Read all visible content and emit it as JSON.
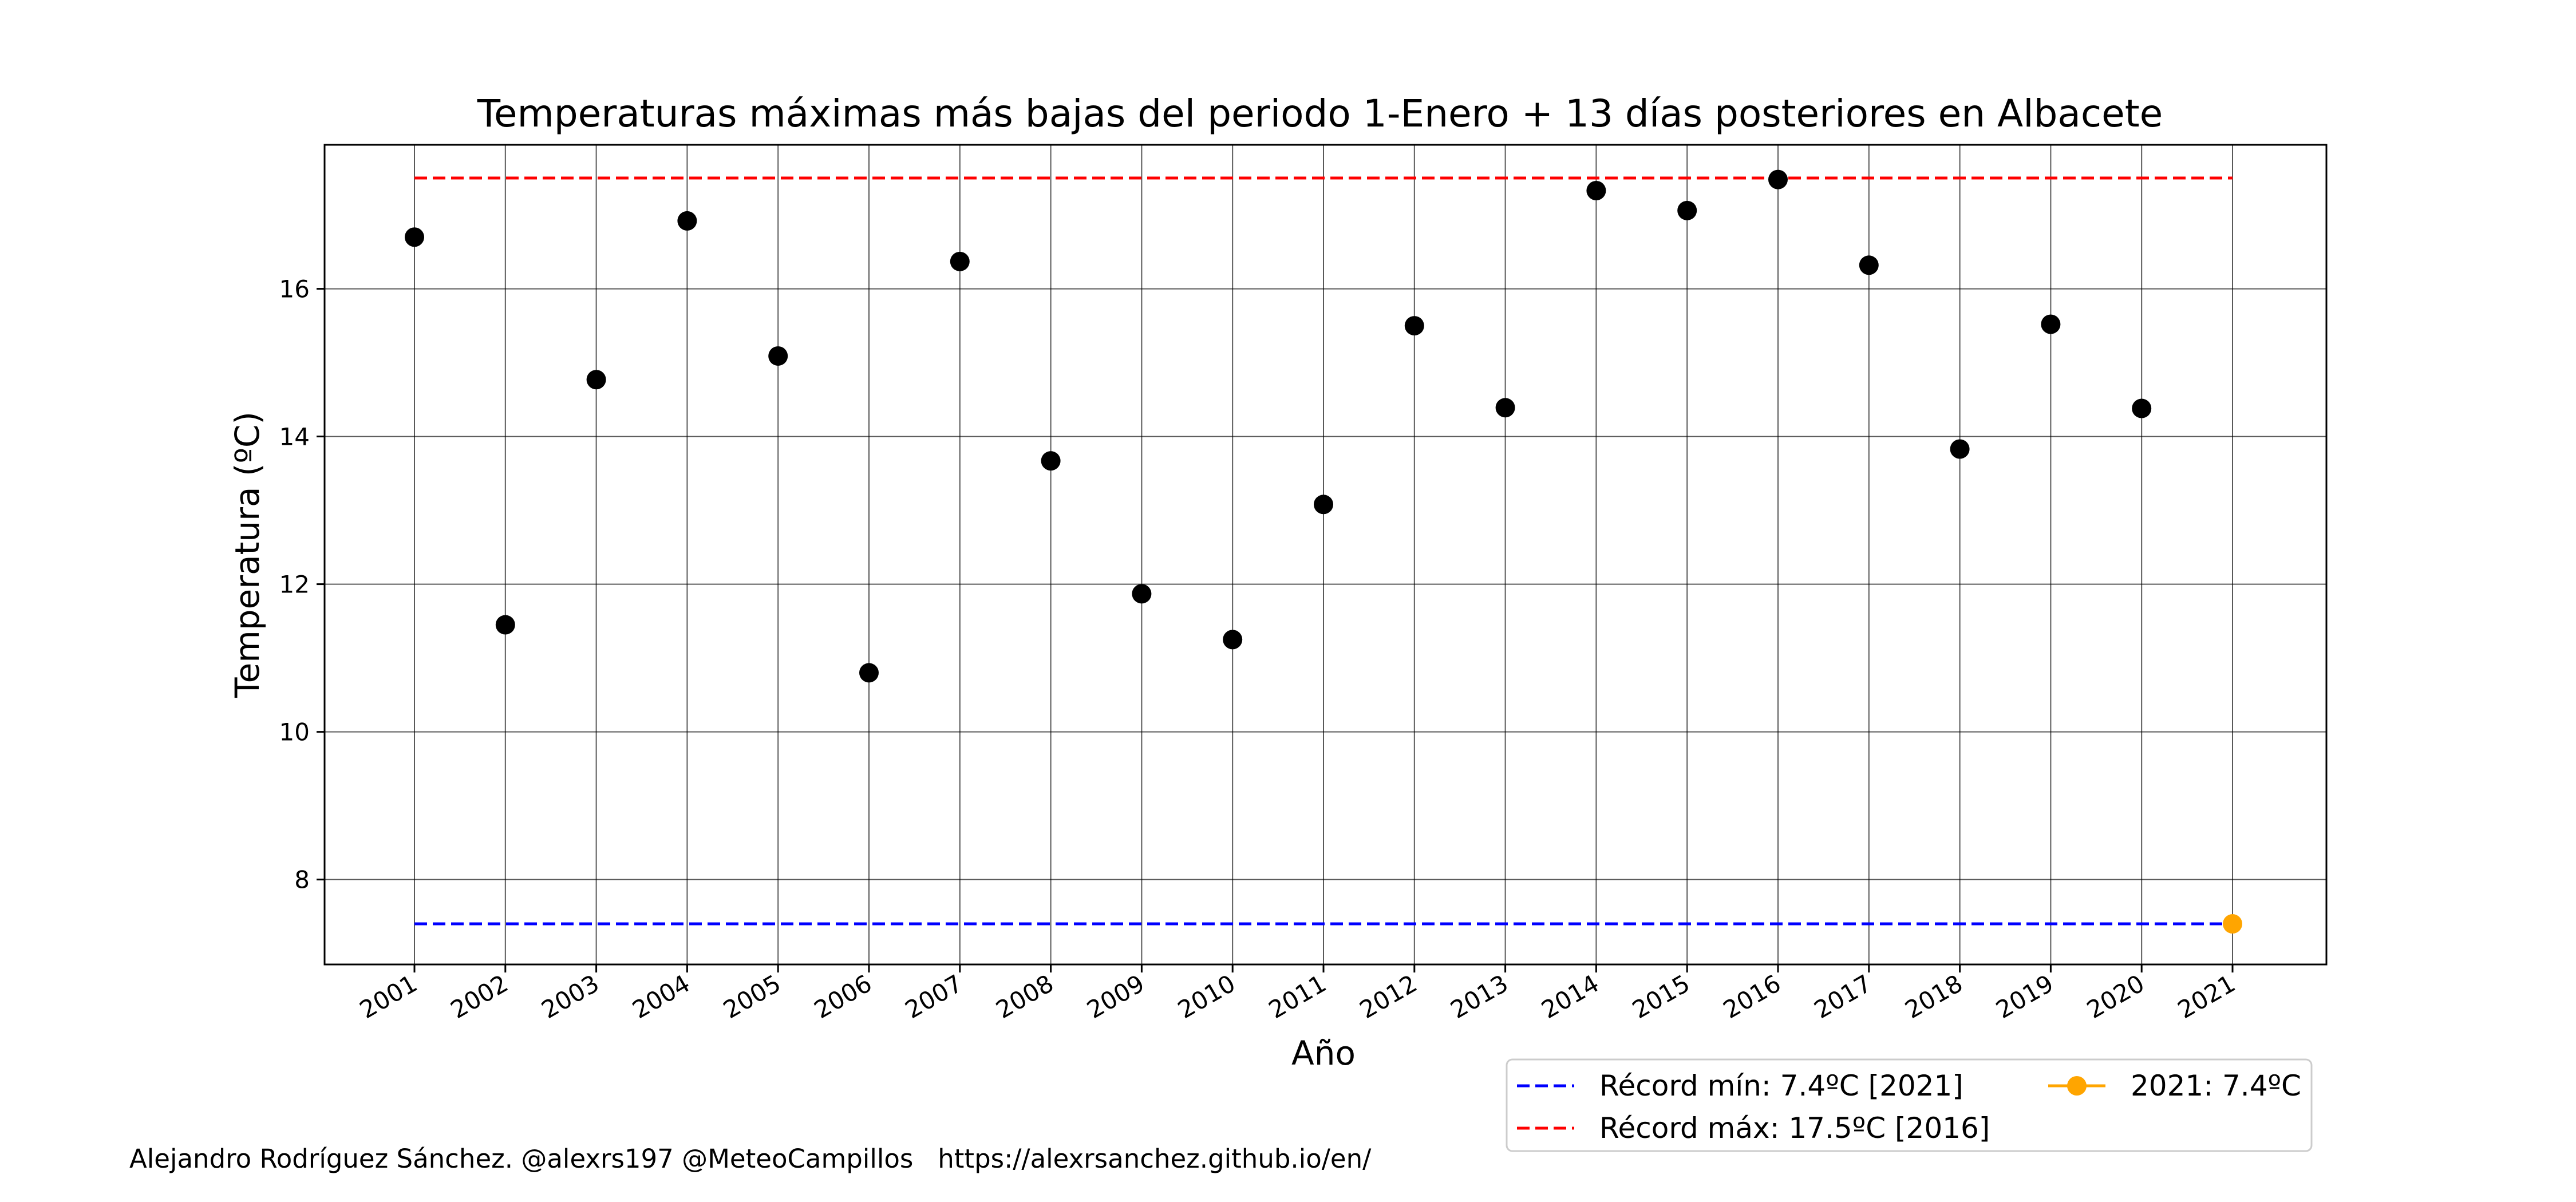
{
  "chart_data": {
    "type": "scatter",
    "title": "Temperaturas máximas más bajas del periodo 1-Enero + 13 días posteriores en Albacete",
    "xlabel": "Año",
    "ylabel": "Temperatura (ºC)",
    "categories": [
      "2001",
      "2002",
      "2003",
      "2004",
      "2005",
      "2006",
      "2007",
      "2008",
      "2009",
      "2010",
      "2011",
      "2012",
      "2013",
      "2014",
      "2015",
      "2016",
      "2017",
      "2018",
      "2019",
      "2020",
      "2021"
    ],
    "yticks": [
      8,
      10,
      12,
      14,
      16
    ],
    "ylim": [
      6.85,
      17.95
    ],
    "grid": true,
    "series": [
      {
        "values": [
          16.7,
          11.45,
          14.77,
          16.92,
          15.09,
          10.8,
          16.37,
          13.67,
          11.87,
          11.25,
          13.08,
          15.5,
          14.39,
          17.33,
          17.06,
          17.48,
          16.32,
          13.83,
          15.52,
          14.38
        ],
        "color": "#000000"
      },
      {
        "name": "2021: 7.4ºC",
        "x": "2021",
        "values": [
          7.4
        ],
        "color": "#ffa500"
      }
    ],
    "reference_lines": [
      {
        "name": "Récord mín: 7.4ºC [2021]",
        "value": 7.4,
        "style": "dashed",
        "color": "#0000ff"
      },
      {
        "name": "Récord máx: 17.5ºC [2016]",
        "value": 17.5,
        "style": "dashed",
        "color": "#ff0000"
      }
    ],
    "legend_position": "bottom-right",
    "legend": [
      {
        "label": "Récord mín: 7.4ºC [2021]",
        "kind": "dashed-line",
        "color": "#0000ff"
      },
      {
        "label": "Récord máx: 17.5ºC [2016]",
        "kind": "dashed-line",
        "color": "#ff0000"
      },
      {
        "label": "2021: 7.4ºC",
        "kind": "line-marker",
        "color": "#ffa500"
      }
    ]
  },
  "footer": {
    "credit": "Alejandro Rodríguez Sánchez. @alexrs197 @MeteoCampillos   https://alexrsanchez.github.io/en/"
  }
}
